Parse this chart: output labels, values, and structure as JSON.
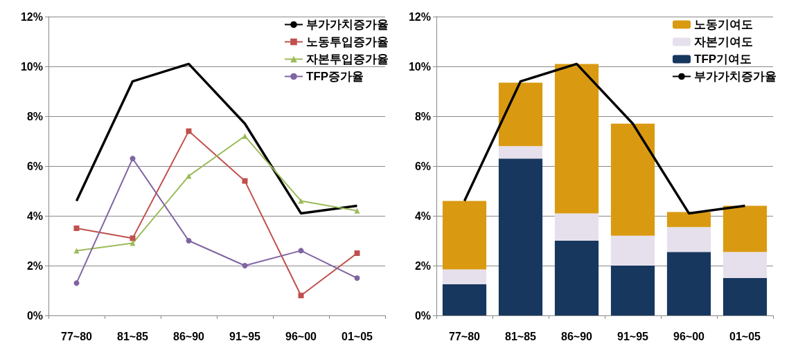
{
  "chart_data": [
    {
      "type": "line",
      "categories": [
        "77~80",
        "81~85",
        "86~90",
        "91~95",
        "96~00",
        "01~05"
      ],
      "series": [
        {
          "name": "부가가치증가율",
          "color": "#000000",
          "marker": "none",
          "values": [
            4.6,
            9.4,
            10.1,
            7.7,
            4.1,
            4.4
          ]
        },
        {
          "name": "노동투입증가율",
          "color": "#c0504d",
          "marker": "square",
          "values": [
            3.5,
            3.1,
            7.4,
            5.4,
            0.8,
            2.5
          ]
        },
        {
          "name": "자본투입증가율",
          "color": "#9bbb59",
          "marker": "triangle",
          "values": [
            2.6,
            2.9,
            5.6,
            7.2,
            4.6,
            4.2
          ]
        },
        {
          "name": "TFP증가율",
          "color": "#8064a2",
          "marker": "circle",
          "values": [
            1.3,
            6.3,
            3.0,
            2.0,
            2.6,
            1.5
          ]
        }
      ],
      "ylim": [
        0,
        12
      ],
      "yticks": [
        {
          "value": 0,
          "label": "0%"
        },
        {
          "value": 2,
          "label": "2%"
        },
        {
          "value": 4,
          "label": "4%"
        },
        {
          "value": 6,
          "label": "6%"
        },
        {
          "value": 8,
          "label": "8%"
        },
        {
          "value": 10,
          "label": "10%"
        },
        {
          "value": 12,
          "label": "12%"
        }
      ],
      "grid": "y",
      "legend": "top right"
    },
    {
      "type": "bar",
      "stacked": true,
      "categories": [
        "77~80",
        "81~85",
        "86~90",
        "91~95",
        "96~00",
        "01~05"
      ],
      "series": [
        {
          "name": "TFP기여도",
          "color": "#17375e",
          "values": [
            1.25,
            6.3,
            3.0,
            2.0,
            2.55,
            1.5
          ]
        },
        {
          "name": "자본기여도",
          "color": "#e6e0ec",
          "values": [
            0.6,
            0.5,
            1.1,
            1.2,
            1.0,
            1.05
          ]
        },
        {
          "name": "노동기여도",
          "color": "#d99a12",
          "values": [
            2.75,
            2.55,
            6.0,
            4.5,
            0.6,
            1.85
          ]
        },
        {
          "name": "부가가치증가율",
          "type": "line",
          "color": "#000000",
          "values": [
            4.6,
            9.4,
            10.1,
            7.7,
            4.1,
            4.4
          ]
        }
      ],
      "ylim": [
        0,
        12
      ],
      "yticks": [
        {
          "value": 0,
          "label": "0%"
        },
        {
          "value": 2,
          "label": "2%"
        },
        {
          "value": 4,
          "label": "4%"
        },
        {
          "value": 6,
          "label": "6%"
        },
        {
          "value": 8,
          "label": "8%"
        },
        {
          "value": 10,
          "label": "10%"
        },
        {
          "value": 12,
          "label": "12%"
        }
      ],
      "grid": "y",
      "legend": "top right"
    }
  ]
}
